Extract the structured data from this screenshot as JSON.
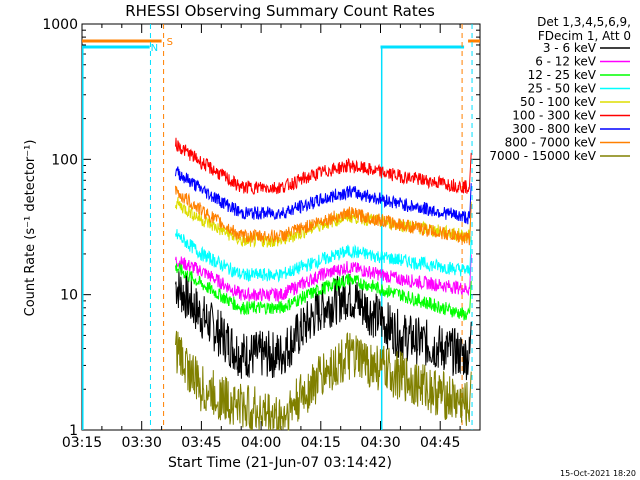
{
  "chart_data": {
    "type": "line",
    "title": "RHESSI Observing Summary Count Rates",
    "xlabel": "Start Time (21-Jun-07 03:14:42)",
    "ylabel": "Count Rate (s⁻¹ detector⁻¹)",
    "yscale": "log",
    "ylim": [
      1,
      1000
    ],
    "xlim_minutes": [
      0,
      100
    ],
    "x_ticks": [
      "03:15",
      "03:30",
      "03:45",
      "04:00",
      "04:15",
      "04:30",
      "04:45"
    ],
    "x_tick_minutes": [
      0,
      15,
      30,
      45,
      60,
      75,
      90
    ],
    "y_ticks": [
      {
        "label": "1",
        "value": 1
      },
      {
        "label": "10",
        "value": 10
      },
      {
        "label": "100",
        "value": 100
      },
      {
        "label": "1000",
        "value": 1000
      }
    ],
    "legend_header": [
      "Det 1,3,4,5,6,9,",
      "FDecim 1, Att 0"
    ],
    "legend_position": "right",
    "timestamp": "15-Oct-2021 18:20",
    "flags": {
      "saa": {
        "label": "S",
        "color": "#ff8000",
        "intervals": [
          [
            0,
            20
          ],
          [
            97,
            100
          ]
        ]
      },
      "night": {
        "label": "N",
        "color": "#00e0ff",
        "intervals": [
          [
            0,
            17
          ],
          [
            75,
            96
          ]
        ]
      }
    },
    "vlines": [
      {
        "minute": 17.2,
        "color": "#00e0ff"
      },
      {
        "minute": 20.5,
        "color": "#ff8000"
      },
      {
        "minute": 95.5,
        "color": "#ff8000"
      },
      {
        "minute": 98.0,
        "color": "#00e0ff"
      }
    ],
    "solid_vlines": [
      {
        "minute": 0.2,
        "color": "#00e0ff"
      },
      {
        "minute": 75.3,
        "color": "#00e0ff"
      }
    ],
    "time_range_minutes": [
      23.5,
      97.5
    ],
    "series": [
      {
        "name": "3 - 6 keV",
        "color": "#000000",
        "values": [
          12,
          7.0,
          3.6,
          3.6,
          8,
          10,
          5,
          3.5
        ]
      },
      {
        "name": "6 - 12 keV",
        "color": "#ff00ff",
        "values": [
          18,
          15,
          10,
          10,
          14,
          16,
          13,
          11
        ]
      },
      {
        "name": "12 - 25 keV",
        "color": "#00ff00",
        "values": [
          16,
          12,
          8,
          8,
          11,
          13,
          10,
          7
        ]
      },
      {
        "name": "25 - 50 keV",
        "color": "#00ffff",
        "values": [
          28,
          20,
          14,
          14,
          18,
          21,
          18,
          15
        ]
      },
      {
        "name": "50 - 100 keV",
        "color": "#dddd00",
        "values": [
          48,
          36,
          25,
          25,
          33,
          38,
          33,
          27
        ]
      },
      {
        "name": "100 - 300 keV",
        "color": "#ff0000",
        "values": [
          130,
          95,
          62,
          62,
          80,
          90,
          75,
          62
        ]
      },
      {
        "name": "300 - 800 keV",
        "color": "#0000ff",
        "values": [
          82,
          60,
          40,
          40,
          50,
          58,
          47,
          37
        ]
      },
      {
        "name": "800 - 7000 keV",
        "color": "#ff8000",
        "values": [
          58,
          42,
          27,
          27,
          35,
          40,
          33,
          26
        ]
      },
      {
        "name": "7000 - 15000 keV",
        "color": "#808000",
        "values": [
          4,
          2,
          1.5,
          1.2,
          2.5,
          3.5,
          2.5,
          1.5
        ]
      }
    ],
    "series_x_minutes": [
      23.5,
      30,
      40,
      50,
      60,
      67,
      80,
      97
    ]
  }
}
